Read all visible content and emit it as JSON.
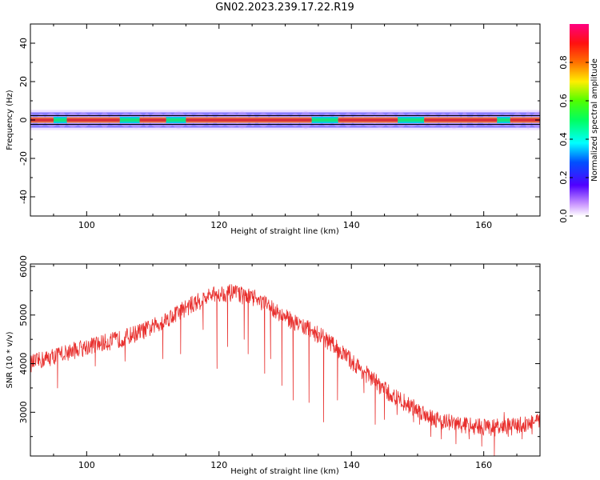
{
  "title": "GN02.2023.239.17.22.R19",
  "colors": {
    "snr_line": "#e8302e",
    "band_center": "#d9303a",
    "band_glow": "#ff8a2a",
    "band_mid": "#18e07a",
    "band_outer": "#00cfe0",
    "band_edge": "#3a2cff",
    "band_halo": "#c9a6ff"
  },
  "chart_data": [
    {
      "id": "spectrogram",
      "type": "heatmap",
      "xlabel": "Height of straight line (km)",
      "ylabel": "Frequency (Hz)",
      "xlim": [
        91.5,
        168.5
      ],
      "ylim": [
        -50,
        50
      ],
      "xticks": [
        100,
        120,
        140,
        160
      ],
      "yticks": [
        40,
        20,
        0,
        -20,
        -40
      ],
      "ytick_labels": [
        "40",
        "20",
        "0",
        "-20",
        "-40"
      ],
      "signal_frequency_hz": 0,
      "band_halfwidth_hz": 4,
      "weak_segments_km": [
        [
          95,
          97
        ],
        [
          105,
          108
        ],
        [
          112,
          115
        ],
        [
          134,
          138
        ],
        [
          147,
          151
        ],
        [
          162,
          164
        ]
      ],
      "colorbar": {
        "label": "Normalized spectral amplitude",
        "range": [
          0,
          1
        ],
        "ticks": [
          0.0,
          0.2,
          0.4,
          0.6,
          0.8
        ],
        "tick_labels": [
          "0.0",
          "0.2",
          "0.4",
          "0.6",
          "0.8"
        ],
        "colormap": "gist_rainbow (white to magenta)"
      },
      "grid": false
    },
    {
      "id": "snr",
      "type": "line",
      "xlabel": "Height of straight line (km)",
      "ylabel": "SNR (10 * v/v)",
      "xlim": [
        91.5,
        168.5
      ],
      "ylim": [
        2100,
        6050
      ],
      "xticks": [
        100,
        120,
        140,
        160
      ],
      "yticks": [
        3000,
        4000,
        5000,
        6000
      ],
      "ytick_labels": [
        "3000",
        "4000",
        "5000",
        "6000"
      ],
      "grid": false,
      "series": [
        {
          "color": "#e8302e",
          "x": [
            91.5,
            95,
            100,
            105,
            110,
            115,
            118,
            120,
            122,
            125,
            128,
            130,
            133,
            135,
            138,
            140,
            143,
            146,
            150,
            153,
            156,
            160,
            163,
            166,
            168.5
          ],
          "y": [
            4000,
            4150,
            4350,
            4500,
            4750,
            5150,
            5350,
            5450,
            5450,
            5350,
            5150,
            4950,
            4750,
            4600,
            4300,
            4050,
            3700,
            3350,
            3050,
            2850,
            2750,
            2700,
            2680,
            2750,
            2800
          ],
          "noise_amplitude": 180,
          "dropouts": [
            {
              "x": 95.6,
              "y": 3500
            },
            {
              "x": 101.3,
              "y": 3950
            },
            {
              "x": 105.8,
              "y": 4050
            },
            {
              "x": 111.5,
              "y": 4100
            },
            {
              "x": 114.2,
              "y": 4200
            },
            {
              "x": 117.6,
              "y": 4700
            },
            {
              "x": 119.7,
              "y": 3900
            },
            {
              "x": 121.3,
              "y": 4350
            },
            {
              "x": 123.8,
              "y": 4500
            },
            {
              "x": 124.4,
              "y": 4200
            },
            {
              "x": 126.9,
              "y": 3800
            },
            {
              "x": 127.8,
              "y": 4100
            },
            {
              "x": 129.5,
              "y": 3550
            },
            {
              "x": 131.2,
              "y": 3250
            },
            {
              "x": 133.6,
              "y": 3200
            },
            {
              "x": 135.8,
              "y": 2800
            },
            {
              "x": 137.9,
              "y": 3250
            },
            {
              "x": 141.9,
              "y": 3400
            },
            {
              "x": 143.6,
              "y": 2750
            },
            {
              "x": 145.0,
              "y": 2850
            },
            {
              "x": 146.9,
              "y": 2950
            },
            {
              "x": 149.4,
              "y": 2800
            },
            {
              "x": 150.3,
              "y": 2750
            },
            {
              "x": 152.0,
              "y": 2500
            },
            {
              "x": 153.6,
              "y": 2450
            },
            {
              "x": 155.8,
              "y": 2350
            },
            {
              "x": 157.8,
              "y": 2450
            },
            {
              "x": 159.7,
              "y": 2300
            },
            {
              "x": 161.6,
              "y": 2100
            },
            {
              "x": 163.7,
              "y": 2500
            },
            {
              "x": 165.8,
              "y": 2450
            },
            {
              "x": 167.3,
              "y": 2550
            }
          ]
        }
      ]
    }
  ]
}
